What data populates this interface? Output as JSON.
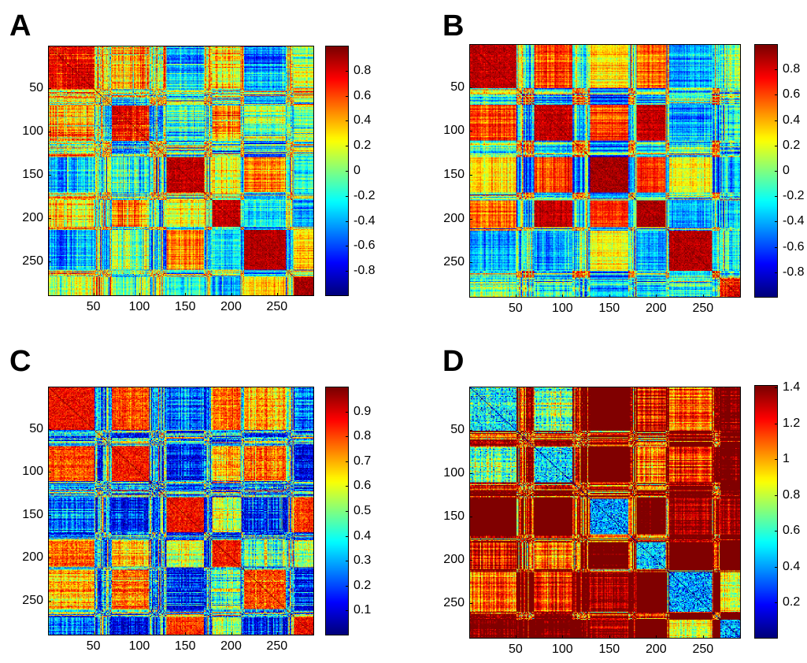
{
  "panels": [
    {
      "letter": "A",
      "variant": "corr",
      "seed": 11,
      "colorbar": {
        "min": -1,
        "max": 1,
        "ticks": [
          {
            "value": 0.8,
            "label": "0.8"
          },
          {
            "value": 0.6,
            "label": "0.6"
          },
          {
            "value": 0.4,
            "label": "0.4"
          },
          {
            "value": 0.2,
            "label": "0.2"
          },
          {
            "value": 0,
            "label": "0"
          },
          {
            "value": -0.2,
            "label": "-0.2"
          },
          {
            "value": -0.4,
            "label": "-0.4"
          },
          {
            "value": -0.6,
            "label": "-0.6"
          },
          {
            "value": -0.8,
            "label": "-0.8"
          }
        ]
      }
    },
    {
      "letter": "B",
      "variant": "corr",
      "seed": 23,
      "colorbar": {
        "min": -1,
        "max": 1,
        "ticks": [
          {
            "value": 0.8,
            "label": "0.8"
          },
          {
            "value": 0.6,
            "label": "0.6"
          },
          {
            "value": 0.4,
            "label": "0.4"
          },
          {
            "value": 0.2,
            "label": "0.2"
          },
          {
            "value": 0,
            "label": "0"
          },
          {
            "value": -0.2,
            "label": "-0.2"
          },
          {
            "value": -0.4,
            "label": "-0.4"
          },
          {
            "value": -0.6,
            "label": "-0.6"
          },
          {
            "value": -0.8,
            "label": "-0.8"
          }
        ]
      }
    },
    {
      "letter": "C",
      "variant": "abs",
      "seed": 37,
      "colorbar": {
        "min": 0,
        "max": 1,
        "ticks": [
          {
            "value": 0.9,
            "label": "0.9"
          },
          {
            "value": 0.8,
            "label": "0.8"
          },
          {
            "value": 0.7,
            "label": "0.7"
          },
          {
            "value": 0.6,
            "label": "0.6"
          },
          {
            "value": 0.5,
            "label": "0.5"
          },
          {
            "value": 0.4,
            "label": "0.4"
          },
          {
            "value": 0.3,
            "label": "0.3"
          },
          {
            "value": 0.2,
            "label": "0.2"
          },
          {
            "value": 0.1,
            "label": "0.1"
          }
        ]
      }
    },
    {
      "letter": "D",
      "variant": "dist",
      "seed": 41,
      "colorbar": {
        "min": 0,
        "max": 1.414,
        "ticks": [
          {
            "value": 1.4,
            "label": "1.4"
          },
          {
            "value": 1.2,
            "label": "1.2"
          },
          {
            "value": 1,
            "label": "1"
          },
          {
            "value": 0.8,
            "label": "0.8"
          },
          {
            "value": 0.6,
            "label": "0.6"
          },
          {
            "value": 0.4,
            "label": "0.4"
          },
          {
            "value": 0.2,
            "label": "0.2"
          }
        ]
      }
    }
  ],
  "chart_data": [
    {
      "type": "heatmap",
      "title": "A",
      "n": 290,
      "colormap": "jet",
      "xticks": [
        50,
        100,
        150,
        200,
        250
      ],
      "yticks": [
        50,
        100,
        150,
        200,
        250
      ],
      "xlim": [
        1,
        290
      ],
      "ylim": [
        1,
        290
      ],
      "clim": [
        -1,
        1
      ],
      "blocks": [
        [
          1,
          50
        ],
        [
          70,
          110
        ],
        [
          130,
          170
        ],
        [
          180,
          210
        ],
        [
          215,
          260
        ],
        [
          270,
          290
        ]
      ]
    },
    {
      "type": "heatmap",
      "title": "B",
      "n": 290,
      "colormap": "jet",
      "xticks": [
        50,
        100,
        150,
        200,
        250
      ],
      "yticks": [
        50,
        100,
        150,
        200,
        250
      ],
      "xlim": [
        1,
        290
      ],
      "ylim": [
        1,
        290
      ],
      "clim": [
        -1,
        1
      ],
      "blocks": [
        [
          1,
          50
        ],
        [
          70,
          110
        ],
        [
          130,
          170
        ],
        [
          180,
          210
        ],
        [
          215,
          260
        ],
        [
          270,
          290
        ]
      ]
    },
    {
      "type": "heatmap",
      "title": "C",
      "n": 290,
      "colormap": "jet",
      "xticks": [
        50,
        100,
        150,
        200,
        250
      ],
      "yticks": [
        50,
        100,
        150,
        200,
        250
      ],
      "xlim": [
        1,
        290
      ],
      "ylim": [
        1,
        290
      ],
      "clim": [
        0,
        1
      ],
      "blocks": [
        [
          1,
          50
        ],
        [
          70,
          110
        ],
        [
          130,
          170
        ],
        [
          180,
          210
        ],
        [
          215,
          260
        ],
        [
          270,
          290
        ]
      ]
    },
    {
      "type": "heatmap",
      "title": "D",
      "n": 290,
      "colormap": "jet",
      "xticks": [
        50,
        100,
        150,
        200,
        250
      ],
      "yticks": [
        50,
        100,
        150,
        200,
        250
      ],
      "xlim": [
        1,
        290
      ],
      "ylim": [
        1,
        290
      ],
      "clim": [
        0,
        1.414
      ],
      "blocks": [
        [
          1,
          50
        ],
        [
          70,
          110
        ],
        [
          130,
          170
        ],
        [
          180,
          210
        ],
        [
          215,
          260
        ],
        [
          270,
          290
        ]
      ]
    }
  ]
}
